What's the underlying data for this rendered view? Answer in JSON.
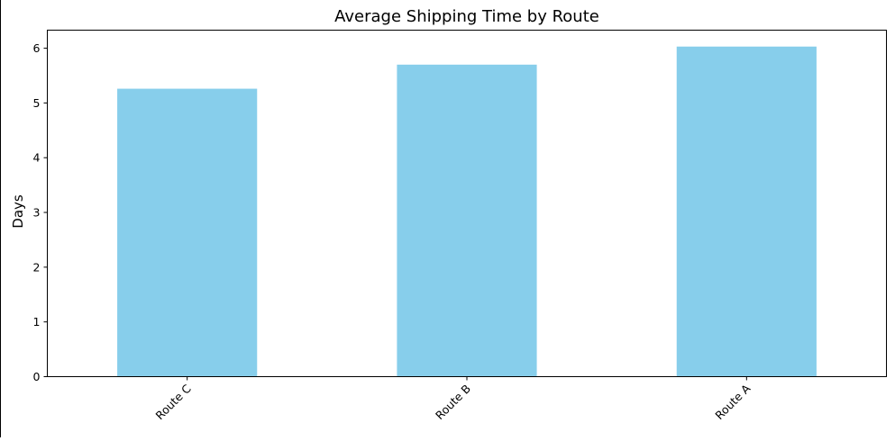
{
  "chart_data": {
    "type": "bar",
    "title": "Average Shipping Time by Route",
    "xlabel": "",
    "ylabel": "Days",
    "categories": [
      "Route C",
      "Route B",
      "Route A"
    ],
    "values": [
      5.26,
      5.7,
      6.03
    ],
    "yticks": [
      0,
      1,
      2,
      3,
      4,
      5,
      6
    ],
    "ylim": [
      0,
      6.33
    ],
    "grid": false,
    "bar_color": "#87CEEB",
    "xtick_rotation_deg": 45
  }
}
